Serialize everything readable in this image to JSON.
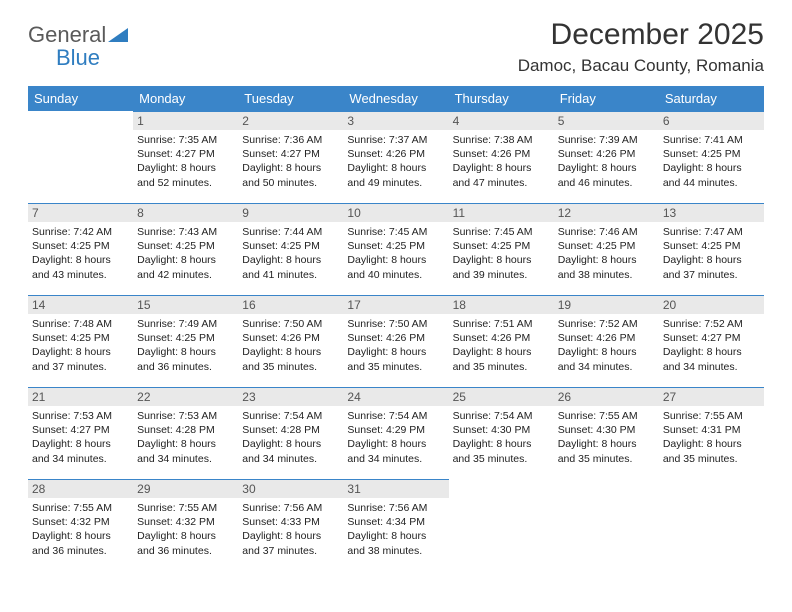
{
  "logo_general": "General",
  "logo_blue": "Blue",
  "title": "December 2025",
  "location": "Damoc, Bacau County, Romania",
  "columns": [
    "Sunday",
    "Monday",
    "Tuesday",
    "Wednesday",
    "Thursday",
    "Friday",
    "Saturday"
  ],
  "header_bg": "#3a85c9",
  "date_bar_bg": "#e9e9e9",
  "date_bar_border": "#3a85c9",
  "weeks": [
    [
      {
        "date": "",
        "sunrise": "",
        "sunset": "",
        "daylight": ""
      },
      {
        "date": "1",
        "sunrise": "Sunrise: 7:35 AM",
        "sunset": "Sunset: 4:27 PM",
        "daylight": "Daylight: 8 hours and 52 minutes."
      },
      {
        "date": "2",
        "sunrise": "Sunrise: 7:36 AM",
        "sunset": "Sunset: 4:27 PM",
        "daylight": "Daylight: 8 hours and 50 minutes."
      },
      {
        "date": "3",
        "sunrise": "Sunrise: 7:37 AM",
        "sunset": "Sunset: 4:26 PM",
        "daylight": "Daylight: 8 hours and 49 minutes."
      },
      {
        "date": "4",
        "sunrise": "Sunrise: 7:38 AM",
        "sunset": "Sunset: 4:26 PM",
        "daylight": "Daylight: 8 hours and 47 minutes."
      },
      {
        "date": "5",
        "sunrise": "Sunrise: 7:39 AM",
        "sunset": "Sunset: 4:26 PM",
        "daylight": "Daylight: 8 hours and 46 minutes."
      },
      {
        "date": "6",
        "sunrise": "Sunrise: 7:41 AM",
        "sunset": "Sunset: 4:25 PM",
        "daylight": "Daylight: 8 hours and 44 minutes."
      }
    ],
    [
      {
        "date": "7",
        "sunrise": "Sunrise: 7:42 AM",
        "sunset": "Sunset: 4:25 PM",
        "daylight": "Daylight: 8 hours and 43 minutes."
      },
      {
        "date": "8",
        "sunrise": "Sunrise: 7:43 AM",
        "sunset": "Sunset: 4:25 PM",
        "daylight": "Daylight: 8 hours and 42 minutes."
      },
      {
        "date": "9",
        "sunrise": "Sunrise: 7:44 AM",
        "sunset": "Sunset: 4:25 PM",
        "daylight": "Daylight: 8 hours and 41 minutes."
      },
      {
        "date": "10",
        "sunrise": "Sunrise: 7:45 AM",
        "sunset": "Sunset: 4:25 PM",
        "daylight": "Daylight: 8 hours and 40 minutes."
      },
      {
        "date": "11",
        "sunrise": "Sunrise: 7:45 AM",
        "sunset": "Sunset: 4:25 PM",
        "daylight": "Daylight: 8 hours and 39 minutes."
      },
      {
        "date": "12",
        "sunrise": "Sunrise: 7:46 AM",
        "sunset": "Sunset: 4:25 PM",
        "daylight": "Daylight: 8 hours and 38 minutes."
      },
      {
        "date": "13",
        "sunrise": "Sunrise: 7:47 AM",
        "sunset": "Sunset: 4:25 PM",
        "daylight": "Daylight: 8 hours and 37 minutes."
      }
    ],
    [
      {
        "date": "14",
        "sunrise": "Sunrise: 7:48 AM",
        "sunset": "Sunset: 4:25 PM",
        "daylight": "Daylight: 8 hours and 37 minutes."
      },
      {
        "date": "15",
        "sunrise": "Sunrise: 7:49 AM",
        "sunset": "Sunset: 4:25 PM",
        "daylight": "Daylight: 8 hours and 36 minutes."
      },
      {
        "date": "16",
        "sunrise": "Sunrise: 7:50 AM",
        "sunset": "Sunset: 4:26 PM",
        "daylight": "Daylight: 8 hours and 35 minutes."
      },
      {
        "date": "17",
        "sunrise": "Sunrise: 7:50 AM",
        "sunset": "Sunset: 4:26 PM",
        "daylight": "Daylight: 8 hours and 35 minutes."
      },
      {
        "date": "18",
        "sunrise": "Sunrise: 7:51 AM",
        "sunset": "Sunset: 4:26 PM",
        "daylight": "Daylight: 8 hours and 35 minutes."
      },
      {
        "date": "19",
        "sunrise": "Sunrise: 7:52 AM",
        "sunset": "Sunset: 4:26 PM",
        "daylight": "Daylight: 8 hours and 34 minutes."
      },
      {
        "date": "20",
        "sunrise": "Sunrise: 7:52 AM",
        "sunset": "Sunset: 4:27 PM",
        "daylight": "Daylight: 8 hours and 34 minutes."
      }
    ],
    [
      {
        "date": "21",
        "sunrise": "Sunrise: 7:53 AM",
        "sunset": "Sunset: 4:27 PM",
        "daylight": "Daylight: 8 hours and 34 minutes."
      },
      {
        "date": "22",
        "sunrise": "Sunrise: 7:53 AM",
        "sunset": "Sunset: 4:28 PM",
        "daylight": "Daylight: 8 hours and 34 minutes."
      },
      {
        "date": "23",
        "sunrise": "Sunrise: 7:54 AM",
        "sunset": "Sunset: 4:28 PM",
        "daylight": "Daylight: 8 hours and 34 minutes."
      },
      {
        "date": "24",
        "sunrise": "Sunrise: 7:54 AM",
        "sunset": "Sunset: 4:29 PM",
        "daylight": "Daylight: 8 hours and 34 minutes."
      },
      {
        "date": "25",
        "sunrise": "Sunrise: 7:54 AM",
        "sunset": "Sunset: 4:30 PM",
        "daylight": "Daylight: 8 hours and 35 minutes."
      },
      {
        "date": "26",
        "sunrise": "Sunrise: 7:55 AM",
        "sunset": "Sunset: 4:30 PM",
        "daylight": "Daylight: 8 hours and 35 minutes."
      },
      {
        "date": "27",
        "sunrise": "Sunrise: 7:55 AM",
        "sunset": "Sunset: 4:31 PM",
        "daylight": "Daylight: 8 hours and 35 minutes."
      }
    ],
    [
      {
        "date": "28",
        "sunrise": "Sunrise: 7:55 AM",
        "sunset": "Sunset: 4:32 PM",
        "daylight": "Daylight: 8 hours and 36 minutes."
      },
      {
        "date": "29",
        "sunrise": "Sunrise: 7:55 AM",
        "sunset": "Sunset: 4:32 PM",
        "daylight": "Daylight: 8 hours and 36 minutes."
      },
      {
        "date": "30",
        "sunrise": "Sunrise: 7:56 AM",
        "sunset": "Sunset: 4:33 PM",
        "daylight": "Daylight: 8 hours and 37 minutes."
      },
      {
        "date": "31",
        "sunrise": "Sunrise: 7:56 AM",
        "sunset": "Sunset: 4:34 PM",
        "daylight": "Daylight: 8 hours and 38 minutes."
      },
      {
        "date": "",
        "sunrise": "",
        "sunset": "",
        "daylight": ""
      },
      {
        "date": "",
        "sunrise": "",
        "sunset": "",
        "daylight": ""
      },
      {
        "date": "",
        "sunrise": "",
        "sunset": "",
        "daylight": ""
      }
    ]
  ]
}
